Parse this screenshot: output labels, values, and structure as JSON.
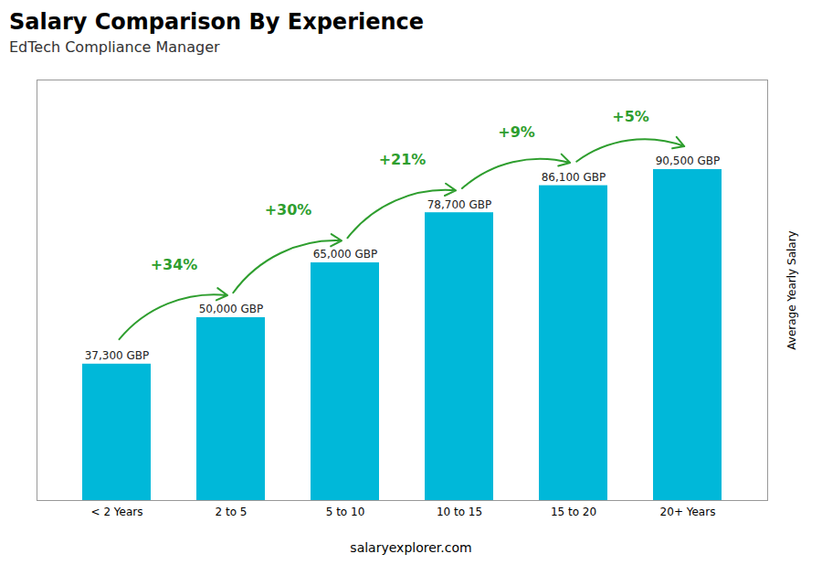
{
  "chart_data": {
    "type": "bar",
    "title": "Salary Comparison By Experience",
    "subtitle": "EdTech Compliance Manager",
    "categories": [
      "< 2 Years",
      "2 to 5",
      "5 to 10",
      "10 to 15",
      "15 to 20",
      "20+ Years"
    ],
    "values": [
      37300,
      50000,
      65000,
      78700,
      86100,
      90500
    ],
    "value_labels": [
      "37,300 GBP",
      "50,000 GBP",
      "65,000 GBP",
      "78,700 GBP",
      "86,100 GBP",
      "90,500 GBP"
    ],
    "data_labels": true,
    "color": "#00b8d9",
    "ylabel": "Average Yearly Salary",
    "ylim": [
      0,
      115000
    ],
    "tick_labels": "x",
    "grid": false,
    "annotations": [
      "+34%",
      "+30%",
      "+21%",
      "+9%",
      "+5%"
    ],
    "caption": "salaryexplorer.com"
  }
}
